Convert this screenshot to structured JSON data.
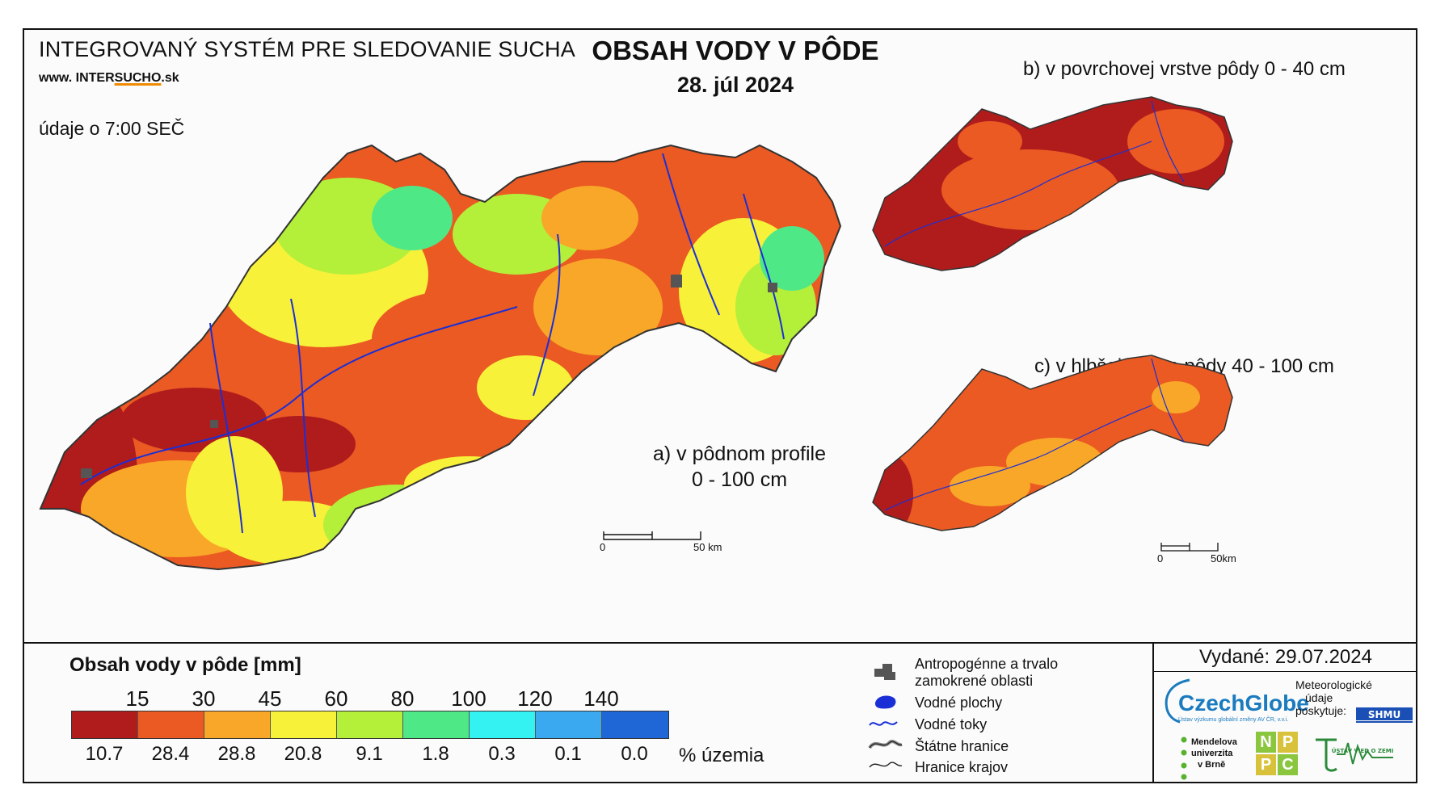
{
  "header": {
    "system_title": "INTEGROVANÝ SYSTÉM PRE SLEDOVANIE SUCHA",
    "website_prefix": "www. ",
    "website_brand": "INTER",
    "website_accent": "SUCHO",
    "website_suffix": ".sk",
    "time_note": "údaje o 7:00 SEČ",
    "title": "OBSAH VODY V PÔDE",
    "date": "28. júl 2024"
  },
  "panels": {
    "a_line1": "a) v pôdnom profile",
    "a_line2": "0 - 100 cm",
    "b": "b) v povrchovej vrstve pôdy 0 - 40 cm",
    "c": "c) v hlbšej vrstve pôdy 40 - 100 cm"
  },
  "scale_main": {
    "start": "0",
    "end": "50 km"
  },
  "scale_small": {
    "start": "0",
    "end": "50km"
  },
  "legend": {
    "title": "Obsah vody v pôde  [mm]",
    "thresholds": [
      "15",
      "30",
      "45",
      "60",
      "80",
      "100",
      "120",
      "140"
    ],
    "colors": [
      "#b01c1c",
      "#ea5a22",
      "#f9a728",
      "#f7f13a",
      "#b4ef3a",
      "#4fe887",
      "#34f2f2",
      "#3aa9ef",
      "#1f66d6"
    ],
    "percent": [
      "10.7",
      "28.4",
      "28.8",
      "20.8",
      "9.1",
      "1.8",
      "0.3",
      "0.1",
      "0.0"
    ],
    "percent_label": "% územia"
  },
  "map_legend": {
    "antropogenic_line1": "Antropogénne a trvalo",
    "antropogenic_line2": "zamokrené oblasti",
    "water_bodies": "Vodné plochy",
    "rivers": "Vodné toky",
    "state_border": "Štátne hranice",
    "region_border": "Hranice krajov"
  },
  "footer": {
    "issued": "Vydané: 29.07.2024",
    "czechglobe": "CzechGlobe",
    "czechglobe_sub": "Ústav výzkumu globální změny AV ČR, v.v.i.",
    "meteo_line1": "Meteorologické",
    "meteo_line2": "údaje",
    "meteo_line3": "poskytuje:",
    "mendel_line1": "Mendelova",
    "mendel_line2": "univerzita",
    "mendel_line3": "v Brně",
    "npc": [
      "N",
      "P",
      "P",
      "C"
    ],
    "shmu": "SHMU",
    "uvz": "ÚSTAV VIED O ZEMI"
  }
}
